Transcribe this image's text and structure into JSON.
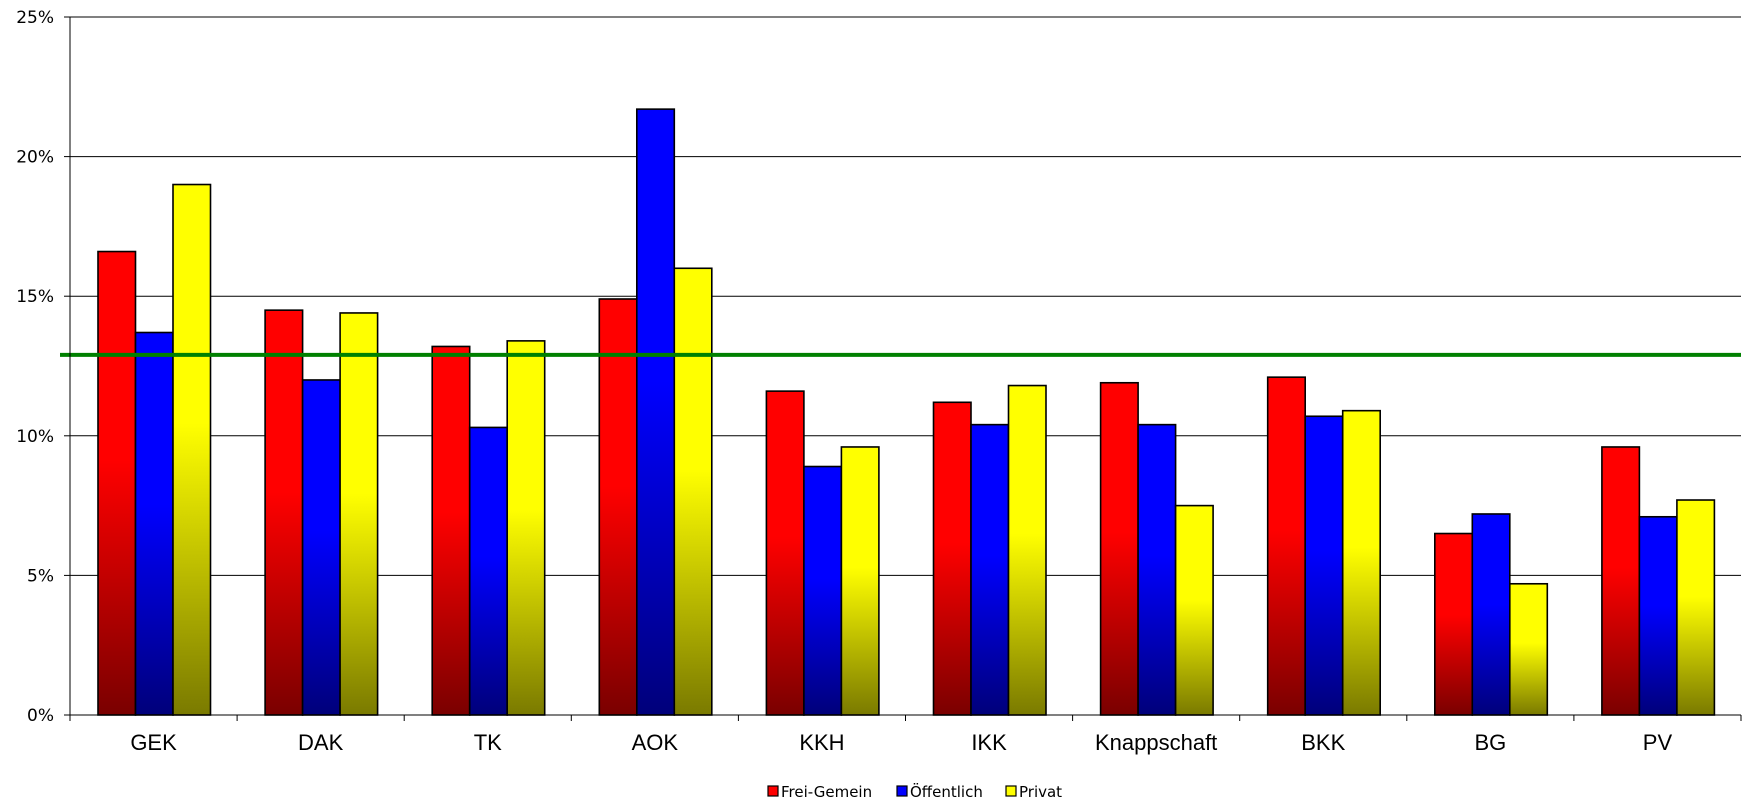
{
  "chart_data": {
    "type": "bar",
    "categories": [
      "GEK",
      "DAK",
      "TK",
      "AOK",
      "KKH",
      "IKK",
      "Knappschaft",
      "BKK",
      "BG",
      "PV"
    ],
    "series": [
      {
        "name": "Frei-Gemein",
        "color": "#ff0000",
        "dark": "#7a0000",
        "values": [
          16.6,
          14.5,
          13.2,
          14.9,
          11.6,
          11.2,
          11.9,
          12.1,
          6.5,
          9.6
        ]
      },
      {
        "name": "Öffentlich",
        "color": "#0000ff",
        "dark": "#00007a",
        "values": [
          13.7,
          12.0,
          10.3,
          21.7,
          8.9,
          10.4,
          10.4,
          10.7,
          7.2,
          7.1
        ]
      },
      {
        "name": "Privat",
        "color": "#ffff00",
        "dark": "#7a7a00",
        "values": [
          19.0,
          14.4,
          13.4,
          16.0,
          9.6,
          11.8,
          7.5,
          10.9,
          4.7,
          7.7
        ]
      }
    ],
    "yticks": [
      "0%",
      "5%",
      "10%",
      "15%",
      "20%",
      "25%"
    ],
    "ylim": [
      0,
      25
    ],
    "reference_line": {
      "value": 12.9,
      "color": "#008000"
    },
    "grid": true,
    "legend_position": "bottom"
  }
}
